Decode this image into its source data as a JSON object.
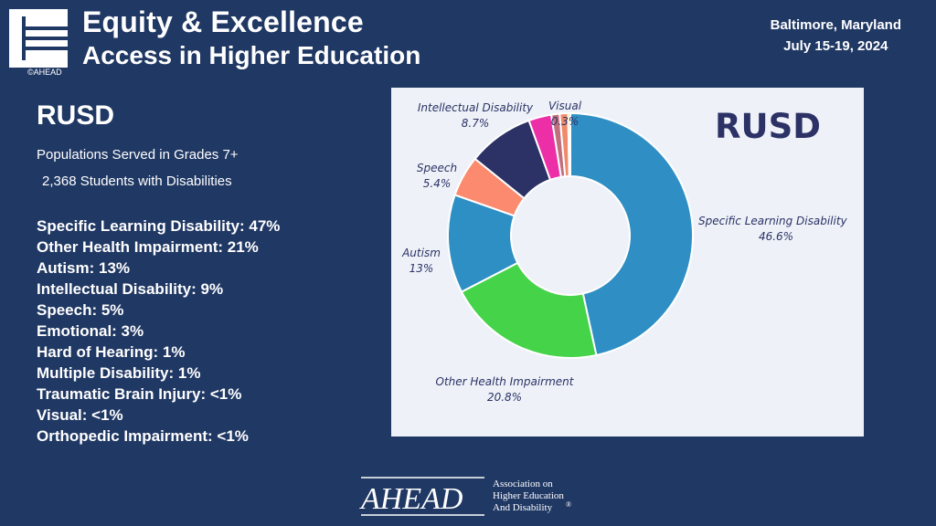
{
  "header": {
    "conference_title": "Equity & Excellence",
    "conference_subtitle": "Access in Higher Education",
    "copyright": "©AHEAD",
    "location": "Baltimore, Maryland",
    "dates": "July 15-19, 2024"
  },
  "slide": {
    "title": "RUSD",
    "subtitle": "Populations Served in Grades 7+",
    "students_line": "2,368 Students with Disabilities",
    "stats": [
      "Specific Learning Disability: 47%",
      "Other Health Impairment: 21%",
      "Autism: 13%",
      "Intellectual Disability: 9%",
      "Speech: 5%",
      "Emotional: 3%",
      "Hard of Hearing: 1%",
      "Multiple Disability: 1%",
      "Traumatic Brain Injury: <1%",
      "Visual: <1%",
      "Orthopedic Impairment: <1%"
    ]
  },
  "footer": {
    "logo_text": "AHEAD",
    "org_line1": "Association on",
    "org_line2": "Higher Education",
    "org_line3": "And Disability",
    "registered_mark": "®"
  },
  "chart_data": {
    "type": "pie",
    "title": "RUSD",
    "slices": [
      {
        "label": "Specific Learning Disability",
        "value": 46.6,
        "value_label": "46.6%",
        "color": "#2f8fc4"
      },
      {
        "label": "Other Health Impairment",
        "value": 20.8,
        "value_label": "20.8%",
        "color": "#45d34a"
      },
      {
        "label": "Autism",
        "value": 13,
        "value_label": "13%",
        "color": "#2e8fc4"
      },
      {
        "label": "Speech",
        "value": 5.4,
        "value_label": "5.4%",
        "color": "#fb8a6e"
      },
      {
        "label": "Intellectual Disability",
        "value": 8.7,
        "value_label": "8.7%",
        "color": "#2c3166"
      },
      {
        "label": "",
        "value": 3.0,
        "value_label": "",
        "color": "#ec2fa6"
      },
      {
        "label": "",
        "value": 1.1,
        "value_label": "",
        "color": "#c06f7d"
      },
      {
        "label": "",
        "value": 1.1,
        "value_label": "",
        "color": "#f08a6b"
      },
      {
        "label": "Visual",
        "value": 0.3,
        "value_label": "0.3%",
        "color": "#f2c530"
      }
    ]
  }
}
